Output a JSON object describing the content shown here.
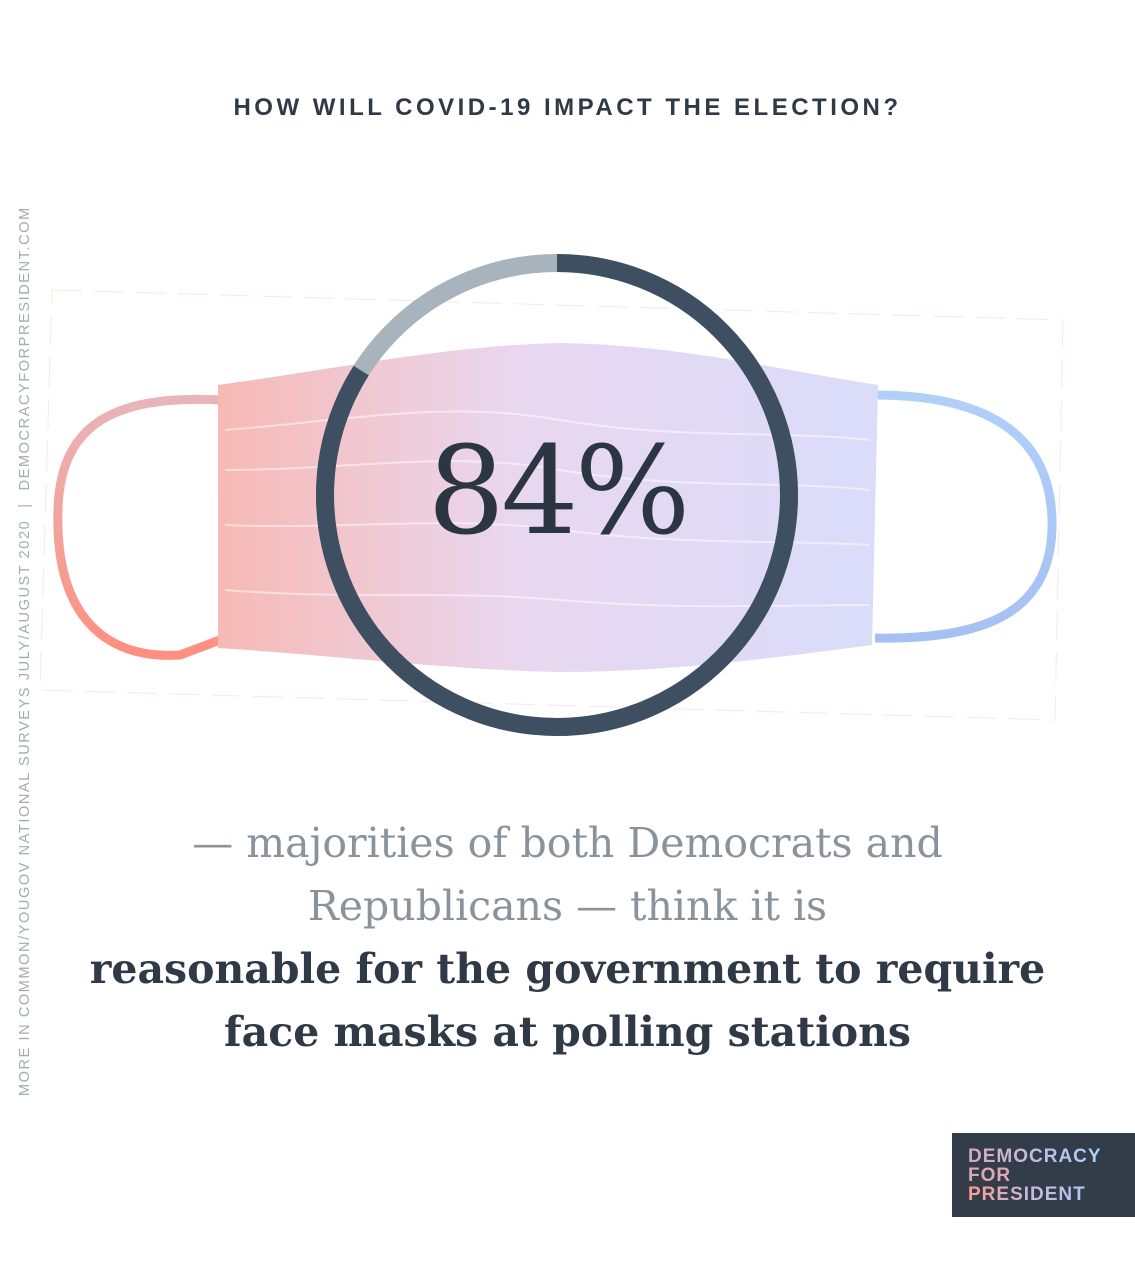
{
  "header": {
    "title": "HOW WILL COVID-19 IMPACT THE ELECTION?"
  },
  "sidebar": {
    "source": "MORE IN COMMON/YOUGOV NATIONAL SURVEYS JULY/AUGUST 2020",
    "separator": "|",
    "website": "DEMOCRACYFORPRESIDENT.COM"
  },
  "stat": {
    "label": "84%",
    "value": 84,
    "ring_color": "#3d4f60",
    "ring_remainder_color": "#a7b4bd",
    "image": "face-mask"
  },
  "caption": {
    "light": "— majorities of both Democrats and Republicans — think it is",
    "bold": "reasonable for the government to require face masks at polling stations"
  },
  "logo": {
    "line1": "DEMOCRACY",
    "line2": "FOR",
    "line3": "PRESIDENT"
  },
  "colors": {
    "text_dark": "#2f3a46",
    "red": "#ff8f80",
    "blue": "#a9ccf8",
    "logo_bg": "#333d49"
  }
}
